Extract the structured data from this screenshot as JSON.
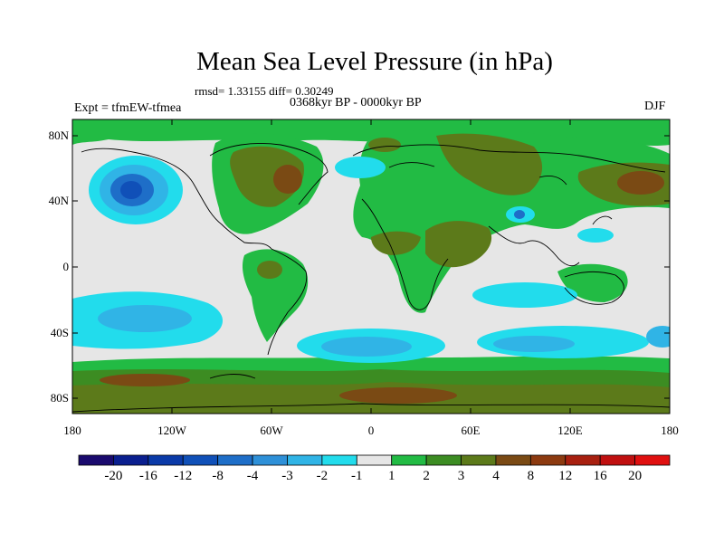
{
  "title": "Mean Sea Level Pressure (in hPa)",
  "stats": "rmsd= 1.33155 diff= 0.30249",
  "period": "0368kyr BP - 0000kyr BP",
  "experiment": "Expt = tfmEW-tfmea",
  "season": "DJF",
  "lat_labels": [
    "80N",
    "40N",
    "0",
    "40S",
    "80S"
  ],
  "lon_labels": [
    "180",
    "120W",
    "60W",
    "0",
    "60E",
    "120E",
    "180"
  ],
  "colorbar": {
    "labels": [
      "-20",
      "-16",
      "-12",
      "-8",
      "-4",
      "-3",
      "-2",
      "-1",
      "1",
      "2",
      "3",
      "4",
      "8",
      "12",
      "16",
      "20"
    ],
    "colors": [
      "#1a0a6e",
      "#0a1f8f",
      "#0a3aa8",
      "#1050b8",
      "#1e6ec8",
      "#2e90d8",
      "#30b4e6",
      "#22dcec",
      "#e6e6e6",
      "#22bb44",
      "#3c8c22",
      "#5c7a1a",
      "#7a4a14",
      "#8c3a10",
      "#a82010",
      "#c01010",
      "#e01010"
    ]
  },
  "palette": {
    "neutral": "#e6e6e6",
    "green": "#22bb44",
    "darkgreen": "#3c8c22",
    "olive": "#5c7a1a",
    "brown": "#7a4a14",
    "cyan": "#22dcec",
    "lightblue": "#30b4e6",
    "blue": "#1e6ec8",
    "darkblue": "#1050b8"
  }
}
